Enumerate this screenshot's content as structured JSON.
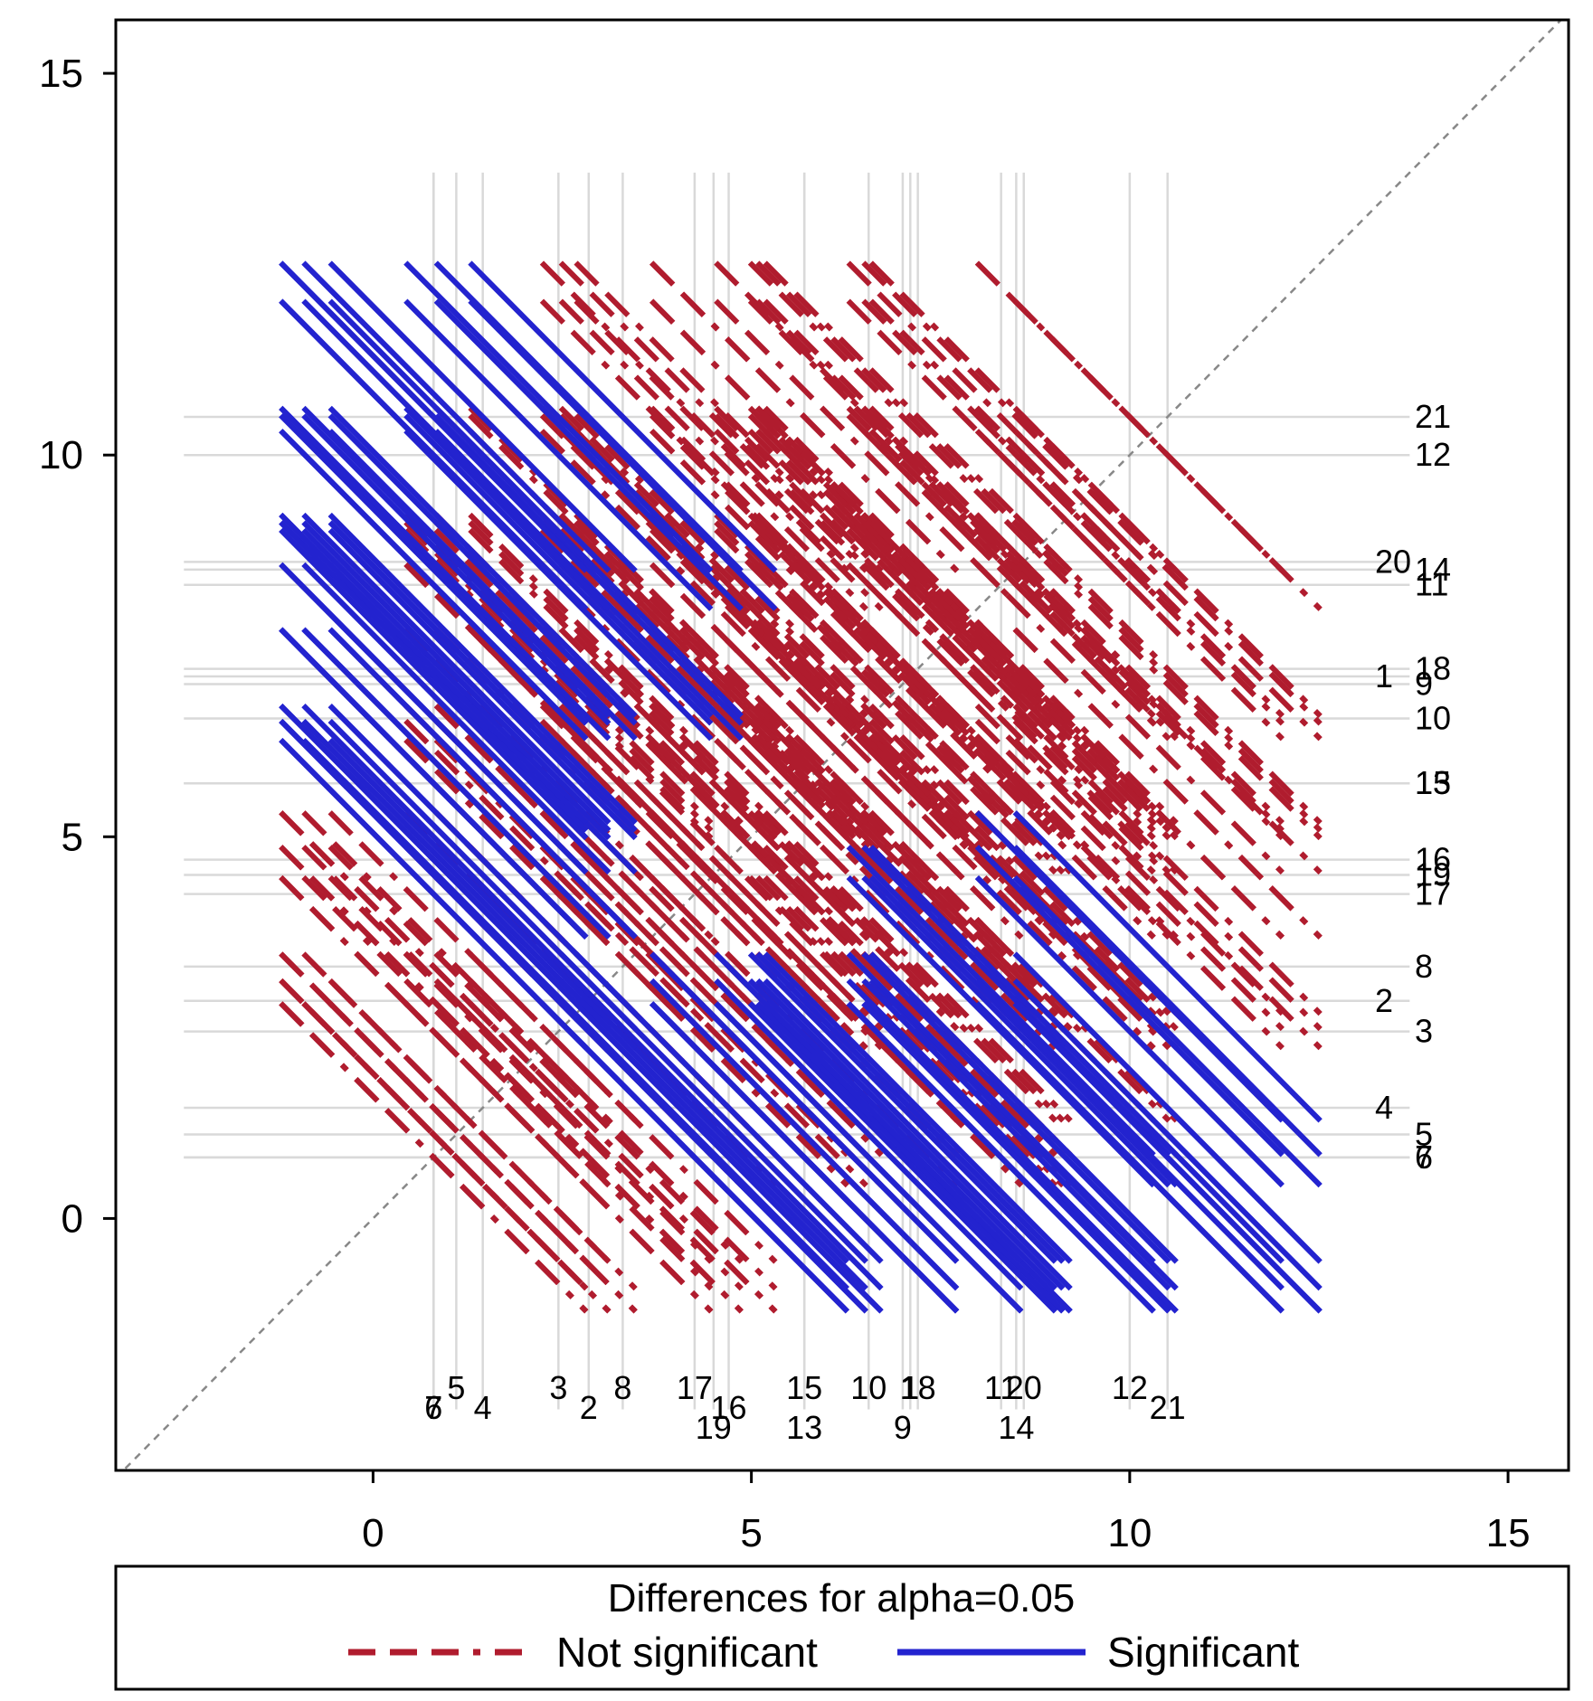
{
  "chart_data": {
    "type": "diffogram",
    "title": "",
    "xlabel": "",
    "ylabel": "",
    "xlim": [
      -3.4,
      15.8
    ],
    "ylim": [
      -3.3,
      15.7
    ],
    "x_ticks": [
      0,
      5,
      10,
      15
    ],
    "y_ticks": [
      0,
      5,
      10,
      15
    ],
    "legend": {
      "title": "Differences for alpha=0.05",
      "entries": [
        {
          "label": "Not significant",
          "color": "#b01c2e",
          "dash": true
        },
        {
          "label": "Significant",
          "color": "#2323cf",
          "dash": false
        }
      ]
    },
    "colors": {
      "not_significant": "#b01c2e",
      "significant": "#2323cf",
      "reference": "#888888",
      "gridline": "#d9d9d9"
    },
    "half_width": 2.02,
    "level_range": [
      -2.5,
      13.7
    ],
    "groups": [
      {
        "id": "1",
        "mean": 7.1
      },
      {
        "id": "2",
        "mean": 2.85
      },
      {
        "id": "3",
        "mean": 2.45
      },
      {
        "id": "4",
        "mean": 1.45
      },
      {
        "id": "5",
        "mean": 1.1
      },
      {
        "id": "6",
        "mean": 0.8
      },
      {
        "id": "7",
        "mean": 0.8
      },
      {
        "id": "8",
        "mean": 3.3
      },
      {
        "id": "9",
        "mean": 7.0
      },
      {
        "id": "10",
        "mean": 6.55
      },
      {
        "id": "11",
        "mean": 8.3
      },
      {
        "id": "12",
        "mean": 10.0
      },
      {
        "id": "13",
        "mean": 5.7
      },
      {
        "id": "14",
        "mean": 8.5
      },
      {
        "id": "15",
        "mean": 5.7
      },
      {
        "id": "16",
        "mean": 4.7
      },
      {
        "id": "17",
        "mean": 4.25
      },
      {
        "id": "18",
        "mean": 7.2
      },
      {
        "id": "19",
        "mean": 4.5
      },
      {
        "id": "20",
        "mean": 8.6
      },
      {
        "id": "21",
        "mean": 10.5
      }
    ],
    "significant_pairs": [
      [
        "4",
        "16"
      ],
      [
        "4",
        "17"
      ],
      [
        "4",
        "19"
      ],
      [
        "4",
        "13"
      ],
      [
        "4",
        "15"
      ],
      [
        "4",
        "10"
      ],
      [
        "4",
        "9"
      ],
      [
        "4",
        "1"
      ],
      [
        "4",
        "18"
      ],
      [
        "4",
        "11"
      ],
      [
        "4",
        "14"
      ],
      [
        "4",
        "20"
      ],
      [
        "4",
        "12"
      ],
      [
        "4",
        "21"
      ],
      [
        "5",
        "16"
      ],
      [
        "5",
        "17"
      ],
      [
        "5",
        "19"
      ],
      [
        "5",
        "13"
      ],
      [
        "5",
        "15"
      ],
      [
        "5",
        "10"
      ],
      [
        "5",
        "9"
      ],
      [
        "5",
        "1"
      ],
      [
        "5",
        "18"
      ],
      [
        "5",
        "11"
      ],
      [
        "5",
        "14"
      ],
      [
        "5",
        "20"
      ],
      [
        "5",
        "12"
      ],
      [
        "5",
        "21"
      ],
      [
        "6",
        "16"
      ],
      [
        "6",
        "17"
      ],
      [
        "6",
        "19"
      ],
      [
        "6",
        "13"
      ],
      [
        "6",
        "15"
      ],
      [
        "6",
        "10"
      ],
      [
        "6",
        "9"
      ],
      [
        "6",
        "1"
      ],
      [
        "6",
        "18"
      ],
      [
        "6",
        "11"
      ],
      [
        "6",
        "14"
      ],
      [
        "6",
        "20"
      ],
      [
        "6",
        "12"
      ],
      [
        "6",
        "21"
      ],
      [
        "7",
        "16"
      ],
      [
        "7",
        "17"
      ],
      [
        "7",
        "19"
      ],
      [
        "7",
        "13"
      ],
      [
        "7",
        "15"
      ],
      [
        "7",
        "10"
      ],
      [
        "7",
        "9"
      ],
      [
        "7",
        "1"
      ],
      [
        "7",
        "18"
      ],
      [
        "7",
        "11"
      ],
      [
        "7",
        "14"
      ],
      [
        "7",
        "20"
      ],
      [
        "7",
        "12"
      ],
      [
        "7",
        "21"
      ],
      [
        "3",
        "12"
      ],
      [
        "3",
        "21"
      ],
      [
        "3",
        "14"
      ],
      [
        "3",
        "20"
      ],
      [
        "3",
        "11"
      ],
      [
        "2",
        "12"
      ],
      [
        "2",
        "21"
      ],
      [
        "2",
        "14"
      ],
      [
        "2",
        "20"
      ],
      [
        "2",
        "11"
      ],
      [
        "8",
        "21"
      ],
      [
        "8",
        "12"
      ]
    ],
    "x_labels": [
      {
        "text": "7",
        "row": 1
      },
      {
        "text": "6",
        "row": 1
      },
      {
        "text": "5",
        "row": 0
      },
      {
        "text": "4",
        "row": 1
      },
      {
        "text": "3",
        "row": 0
      },
      {
        "text": "2",
        "row": 1
      },
      {
        "text": "8",
        "row": 0
      },
      {
        "text": "17",
        "row": 0
      },
      {
        "text": "19",
        "row": 2
      },
      {
        "text": "16",
        "row": 1
      },
      {
        "text": "15",
        "row": 0
      },
      {
        "text": "13",
        "row": 2
      },
      {
        "text": "10",
        "row": 0
      },
      {
        "text": "9",
        "row": 2
      },
      {
        "text": "1",
        "row": 0
      },
      {
        "text": "18",
        "row": 0
      },
      {
        "text": "11",
        "row": 0
      },
      {
        "text": "20",
        "row": 0
      },
      {
        "text": "14",
        "row": 2
      },
      {
        "text": "12",
        "row": 0
      },
      {
        "text": "21",
        "row": 1
      }
    ],
    "y_labels": [
      {
        "text": "21",
        "col": 1
      },
      {
        "text": "12",
        "col": 1
      },
      {
        "text": "14",
        "col": 1
      },
      {
        "text": "20",
        "col": 0
      },
      {
        "text": "11",
        "col": 1
      },
      {
        "text": "1",
        "col": 0
      },
      {
        "text": "18",
        "col": 1
      },
      {
        "text": "9",
        "col": 1
      },
      {
        "text": "10",
        "col": 1
      },
      {
        "text": "13",
        "col": 1
      },
      {
        "text": "15",
        "col": 1
      },
      {
        "text": "16",
        "col": 1
      },
      {
        "text": "19",
        "col": 1
      },
      {
        "text": "17",
        "col": 1
      },
      {
        "text": "8",
        "col": 1
      },
      {
        "text": "2",
        "col": 0
      },
      {
        "text": "3",
        "col": 1
      },
      {
        "text": "4",
        "col": 0
      },
      {
        "text": "5",
        "col": 1
      },
      {
        "text": "6",
        "col": 1
      },
      {
        "text": "7",
        "col": 1
      }
    ]
  }
}
